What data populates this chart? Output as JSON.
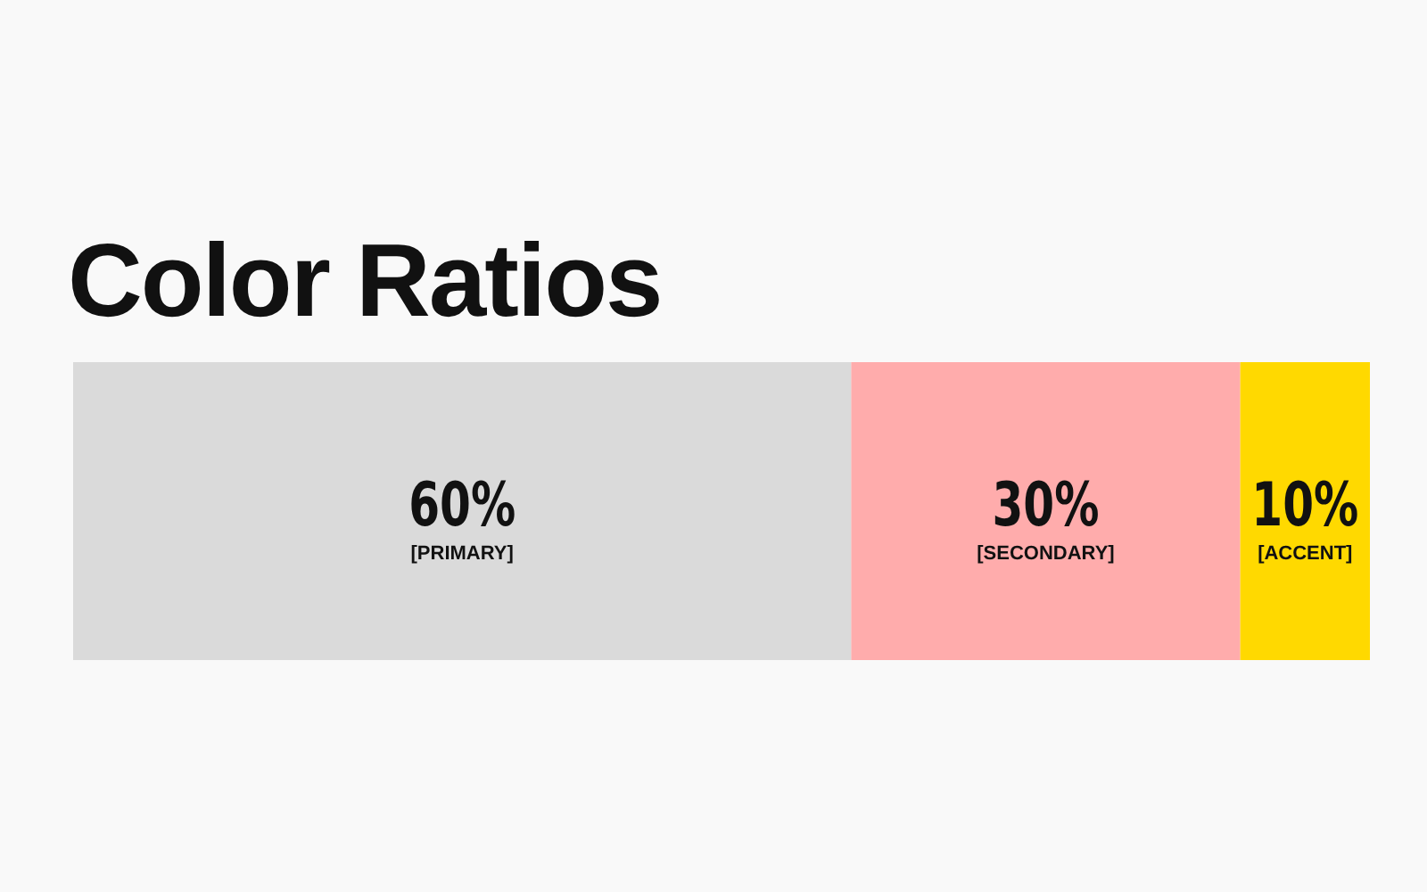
{
  "chart_data": {
    "type": "bar",
    "title": "Color Ratios",
    "orientation": "horizontal",
    "stacked": true,
    "categories": [
      null
    ],
    "xlim": [
      0,
      100
    ],
    "series": [
      {
        "name": "[PRIMARY]",
        "color": "#dadada",
        "values": [
          60
        ],
        "value_labels": [
          "60%"
        ]
      },
      {
        "name": "[SECONDARY]",
        "color": "#ffacac",
        "values": [
          30
        ],
        "value_labels": [
          "30%"
        ]
      },
      {
        "name": "[ACCENT]",
        "color": "#ffd900",
        "values": [
          10
        ],
        "value_labels": [
          "10%"
        ]
      }
    ]
  }
}
